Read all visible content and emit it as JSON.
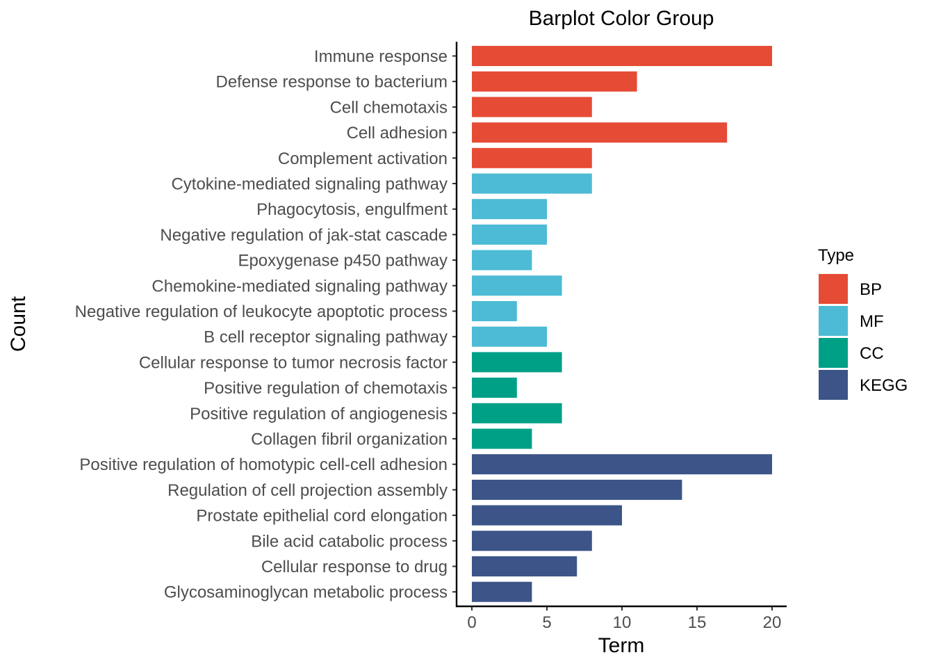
{
  "chart_data": {
    "type": "bar",
    "orientation": "horizontal",
    "title": "Barplot Color Group",
    "xlabel": "Term",
    "ylabel": "Count",
    "xlim": [
      0,
      20
    ],
    "x_ticks": [
      0,
      5,
      10,
      15,
      20
    ],
    "grid": false,
    "legend": {
      "title": "Type",
      "placement": "right",
      "entries": [
        {
          "name": "BP",
          "color": "#E64B35"
        },
        {
          "name": "MF",
          "color": "#4DBBD5"
        },
        {
          "name": "CC",
          "color": "#00A087"
        },
        {
          "name": "KEGG",
          "color": "#3C5488"
        }
      ]
    },
    "bars": [
      {
        "category": "Immune response",
        "value": 20,
        "type": "BP"
      },
      {
        "category": "Defense response to bacterium",
        "value": 11,
        "type": "BP"
      },
      {
        "category": "Cell chemotaxis",
        "value": 8,
        "type": "BP"
      },
      {
        "category": "Cell adhesion",
        "value": 17,
        "type": "BP"
      },
      {
        "category": "Complement activation",
        "value": 8,
        "type": "BP"
      },
      {
        "category": "Cytokine-mediated signaling pathway",
        "value": 8,
        "type": "MF"
      },
      {
        "category": "Phagocytosis, engulfment",
        "value": 5,
        "type": "MF"
      },
      {
        "category": "Negative regulation of jak-stat cascade",
        "value": 5,
        "type": "MF"
      },
      {
        "category": "Epoxygenase p450 pathway",
        "value": 4,
        "type": "MF"
      },
      {
        "category": "Chemokine-mediated signaling pathway",
        "value": 6,
        "type": "MF"
      },
      {
        "category": "Negative regulation of leukocyte apoptotic process",
        "value": 3,
        "type": "MF"
      },
      {
        "category": "B cell receptor signaling pathway",
        "value": 5,
        "type": "MF"
      },
      {
        "category": "Cellular response to tumor necrosis factor",
        "value": 6,
        "type": "CC"
      },
      {
        "category": "Positive regulation of chemotaxis",
        "value": 3,
        "type": "CC"
      },
      {
        "category": "Positive regulation of angiogenesis",
        "value": 6,
        "type": "CC"
      },
      {
        "category": "Collagen fibril organization",
        "value": 4,
        "type": "CC"
      },
      {
        "category": "Positive regulation of homotypic cell-cell adhesion",
        "value": 20,
        "type": "KEGG"
      },
      {
        "category": "Regulation of cell projection assembly",
        "value": 14,
        "type": "KEGG"
      },
      {
        "category": "Prostate epithelial cord elongation",
        "value": 10,
        "type": "KEGG"
      },
      {
        "category": "Bile acid catabolic process",
        "value": 8,
        "type": "KEGG"
      },
      {
        "category": "Cellular response to drug",
        "value": 7,
        "type": "KEGG"
      },
      {
        "category": "Glycosaminoglycan metabolic process",
        "value": 4,
        "type": "KEGG"
      }
    ]
  }
}
